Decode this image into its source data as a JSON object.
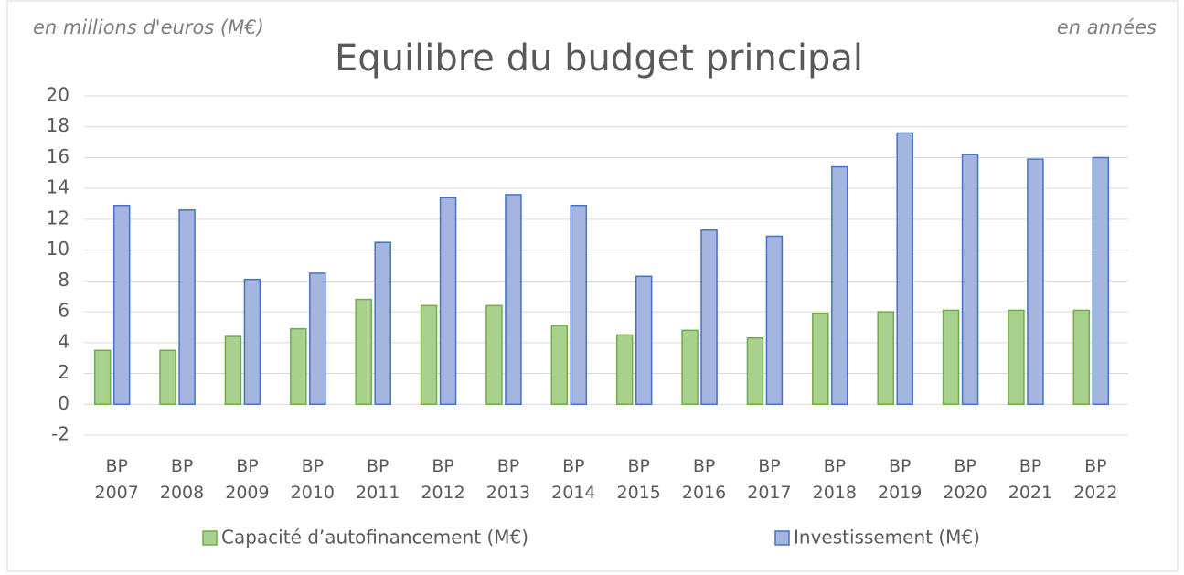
{
  "chart_data": {
    "type": "bar",
    "title": "Equilibre du budget principal",
    "y_label": "en millions d'euros (M€)",
    "x_label": "en années",
    "categories": [
      "BP 2007",
      "BP 2008",
      "BP 2009",
      "BP 2010",
      "BP 2011",
      "BP 2012",
      "BP 2013",
      "BP 2014",
      "BP 2015",
      "BP 2016",
      "BP 2017",
      "BP 2018",
      "BP 2019",
      "BP 2020",
      "BP 2021",
      "BP 2022"
    ],
    "series": [
      {
        "name": "Capacité d’autofinancement (M€)",
        "color": "#a9d18e",
        "stroke": "#70ad47",
        "values": [
          3.5,
          3.5,
          4.4,
          4.9,
          6.8,
          6.4,
          6.4,
          5.1,
          4.5,
          4.8,
          4.3,
          5.9,
          6.0,
          6.1,
          6.1,
          6.1
        ]
      },
      {
        "name": "Investissement (M€)",
        "color": "#a4b5e0",
        "stroke": "#4472c4",
        "values": [
          12.9,
          12.6,
          8.1,
          8.5,
          10.5,
          13.4,
          13.6,
          12.9,
          8.3,
          11.3,
          10.9,
          15.4,
          17.6,
          16.2,
          15.9,
          16.0
        ]
      }
    ],
    "ylim": [
      -2,
      20
    ],
    "yticks": [
      -2,
      0,
      2,
      4,
      6,
      8,
      10,
      12,
      14,
      16,
      18,
      20
    ],
    "grid": true
  }
}
